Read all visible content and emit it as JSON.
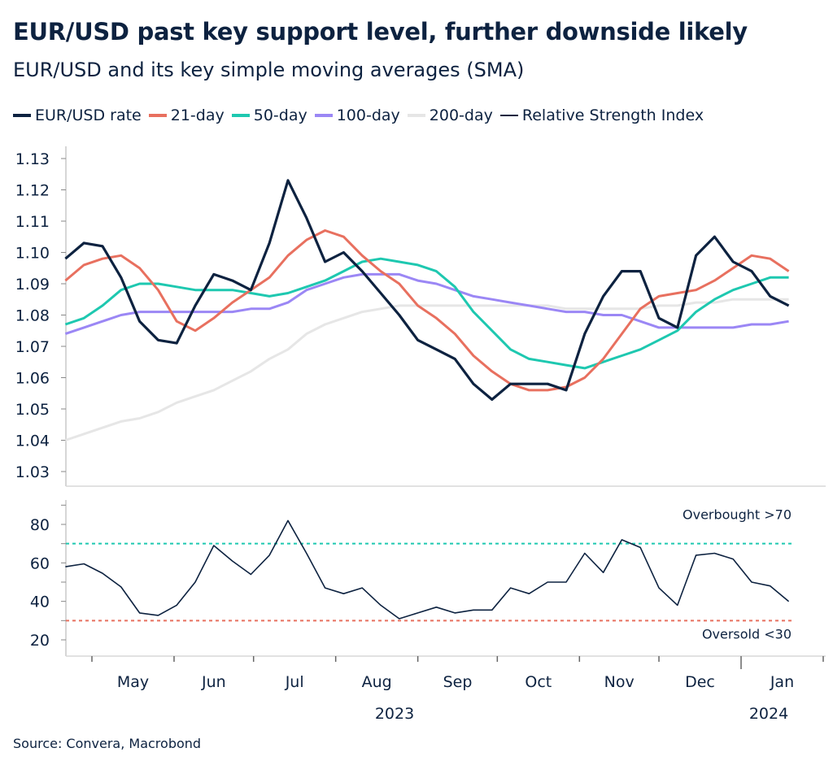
{
  "title": "EUR/USD past key support level, further downside likely",
  "subtitle": "EUR/USD and its key simple moving averages (SMA)",
  "source": "Source: Convera, Macrobond",
  "colors": {
    "rate": "#0d2240",
    "sma21": "#e8705f",
    "sma50": "#1ec8b0",
    "sma100": "#9b87f5",
    "sma200": "#e6e6e6",
    "rsi": "#0d2240"
  },
  "legend": [
    {
      "label": "EUR/USD rate",
      "color": "#0d2240"
    },
    {
      "label": "21-day",
      "color": "#e8705f"
    },
    {
      "label": "50-day",
      "color": "#1ec8b0"
    },
    {
      "label": "100-day",
      "color": "#9b87f5"
    },
    {
      "label": "200-day",
      "color": "#e6e6e6"
    },
    {
      "label": "Relative Strength Index",
      "color": "#0d2240"
    }
  ],
  "chart_data": [
    {
      "type": "line",
      "panel": "top",
      "ylim": [
        1.03,
        1.13
      ],
      "yticks": [
        "1.03",
        "1.04",
        "1.05",
        "1.06",
        "1.07",
        "1.08",
        "1.09",
        "1.10",
        "1.11",
        "1.12",
        "1.13"
      ],
      "grid": false,
      "x": [
        "2023-04-21",
        "2023-04-28",
        "2023-05-05",
        "2023-05-12",
        "2023-05-19",
        "2023-05-26",
        "2023-06-02",
        "2023-06-09",
        "2023-06-16",
        "2023-06-23",
        "2023-06-30",
        "2023-07-07",
        "2023-07-14",
        "2023-07-21",
        "2023-07-28",
        "2023-08-04",
        "2023-08-11",
        "2023-08-18",
        "2023-08-25",
        "2023-09-01",
        "2023-09-08",
        "2023-09-15",
        "2023-09-22",
        "2023-09-29",
        "2023-10-06",
        "2023-10-13",
        "2023-10-20",
        "2023-10-27",
        "2023-11-03",
        "2023-11-10",
        "2023-11-17",
        "2023-11-24",
        "2023-12-01",
        "2023-12-08",
        "2023-12-15",
        "2023-12-22",
        "2023-12-29",
        "2024-01-05",
        "2024-01-12",
        "2024-01-19"
      ],
      "series": [
        {
          "name": "EUR/USD rate",
          "key": "rate",
          "values": [
            1.098,
            1.103,
            1.102,
            1.092,
            1.078,
            1.072,
            1.071,
            1.083,
            1.093,
            1.091,
            1.088,
            1.103,
            1.123,
            1.111,
            1.097,
            1.1,
            1.094,
            1.087,
            1.08,
            1.072,
            1.069,
            1.066,
            1.058,
            1.053,
            1.058,
            1.058,
            1.058,
            1.056,
            1.074,
            1.086,
            1.094,
            1.094,
            1.079,
            1.076,
            1.099,
            1.105,
            1.097,
            1.094,
            1.086,
            1.083
          ]
        },
        {
          "name": "21-day",
          "key": "sma21",
          "values": [
            1.091,
            1.096,
            1.098,
            1.099,
            1.095,
            1.088,
            1.078,
            1.075,
            1.079,
            1.084,
            1.088,
            1.092,
            1.099,
            1.104,
            1.107,
            1.105,
            1.099,
            1.094,
            1.09,
            1.083,
            1.079,
            1.074,
            1.067,
            1.062,
            1.058,
            1.056,
            1.056,
            1.057,
            1.06,
            1.066,
            1.074,
            1.082,
            1.086,
            1.087,
            1.088,
            1.091,
            1.095,
            1.099,
            1.098,
            1.094
          ]
        },
        {
          "name": "50-day",
          "key": "sma50",
          "values": [
            1.077,
            1.079,
            1.083,
            1.088,
            1.09,
            1.09,
            1.089,
            1.088,
            1.088,
            1.088,
            1.087,
            1.086,
            1.087,
            1.089,
            1.091,
            1.094,
            1.097,
            1.098,
            1.097,
            1.096,
            1.094,
            1.089,
            1.081,
            1.075,
            1.069,
            1.066,
            1.065,
            1.064,
            1.063,
            1.065,
            1.067,
            1.069,
            1.072,
            1.075,
            1.081,
            1.085,
            1.088,
            1.09,
            1.092,
            1.092
          ]
        },
        {
          "name": "100-day",
          "key": "sma100",
          "values": [
            1.074,
            1.076,
            1.078,
            1.08,
            1.081,
            1.081,
            1.081,
            1.081,
            1.081,
            1.081,
            1.082,
            1.082,
            1.084,
            1.088,
            1.09,
            1.092,
            1.093,
            1.093,
            1.093,
            1.091,
            1.09,
            1.088,
            1.086,
            1.085,
            1.084,
            1.083,
            1.082,
            1.081,
            1.081,
            1.08,
            1.08,
            1.078,
            1.076,
            1.076,
            1.076,
            1.076,
            1.076,
            1.077,
            1.077,
            1.078
          ]
        },
        {
          "name": "200-day",
          "key": "sma200",
          "values": [
            1.04,
            1.042,
            1.044,
            1.046,
            1.047,
            1.049,
            1.052,
            1.054,
            1.056,
            1.059,
            1.062,
            1.066,
            1.069,
            1.074,
            1.077,
            1.079,
            1.081,
            1.082,
            1.083,
            1.083,
            1.083,
            1.083,
            1.083,
            1.083,
            1.083,
            1.083,
            1.083,
            1.082,
            1.082,
            1.082,
            1.082,
            1.082,
            1.083,
            1.083,
            1.084,
            1.084,
            1.085,
            1.085,
            1.085,
            1.085
          ]
        }
      ]
    },
    {
      "type": "line",
      "panel": "bottom",
      "ylim": [
        15,
        95
      ],
      "yticks": [
        "20",
        "40",
        "60",
        "80"
      ],
      "minor_yticks": [
        30,
        50,
        70,
        90
      ],
      "grid": false,
      "series": [
        {
          "name": "Relative Strength Index",
          "key": "rsi",
          "values": [
            58,
            59.5,
            54.6,
            47.5,
            34,
            32.7,
            38,
            50,
            69,
            61,
            54,
            64,
            82,
            65,
            47,
            44,
            47,
            38,
            31,
            34,
            37,
            34,
            35.5,
            35.5,
            47,
            44,
            50,
            50,
            65,
            55,
            72,
            68,
            47,
            38,
            64,
            65,
            62,
            50,
            48,
            40
          ]
        }
      ],
      "reference_lines": [
        {
          "value": 70,
          "label": "Overbought >70",
          "color": "#1ec8b0"
        },
        {
          "value": 30,
          "label": "Oversold <30",
          "color": "#e8705f"
        }
      ]
    }
  ],
  "xaxis": {
    "months": [
      "May",
      "Jun",
      "Jul",
      "Aug",
      "Sep",
      "Oct",
      "Nov",
      "Dec",
      "Jan"
    ],
    "month_starts": [
      "2023-05-01",
      "2023-06-01",
      "2023-07-01",
      "2023-08-01",
      "2023-09-01",
      "2023-10-01",
      "2023-11-01",
      "2023-12-01",
      "2024-01-01",
      "2024-02-01"
    ],
    "years": [
      "2023",
      "2024"
    ]
  }
}
